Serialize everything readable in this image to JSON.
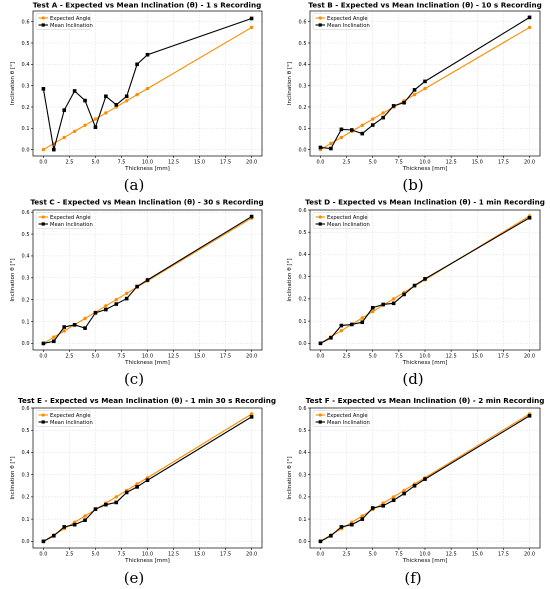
{
  "figure": {
    "panels": [
      {
        "caption": "(a)"
      },
      {
        "caption": "(b)"
      },
      {
        "caption": "(c)"
      },
      {
        "caption": "(d)"
      },
      {
        "caption": "(e)"
      },
      {
        "caption": "(f)"
      }
    ]
  },
  "colors": {
    "expected": "#ff8c00",
    "mean": "#000000",
    "grid": "#d9d9d9"
  },
  "chart_data": [
    {
      "type": "line",
      "title": "Test A - Expected vs Mean Inclination (θ) - 1 s Recording",
      "xlabel": "Thickness [mm]",
      "ylabel": "Inclination θ [°]",
      "xlim": [
        -1,
        21
      ],
      "ylim": [
        -0.03,
        0.65
      ],
      "xticks": [
        0.0,
        2.5,
        5.0,
        7.5,
        10.0,
        12.5,
        15.0,
        17.5,
        20.0
      ],
      "yticks": [
        0.0,
        0.1,
        0.2,
        0.3,
        0.4,
        0.5,
        0.6
      ],
      "grid": true,
      "legend": "top-left",
      "x": [
        0,
        1,
        2,
        3,
        4,
        5,
        6,
        7,
        8,
        9,
        10,
        20
      ],
      "series": [
        {
          "name": "Expected Angle",
          "marker": "circle",
          "values": [
            0.0,
            0.029,
            0.057,
            0.086,
            0.114,
            0.143,
            0.172,
            0.2,
            0.229,
            0.258,
            0.286,
            0.573
          ]
        },
        {
          "name": "Mean Inclination",
          "marker": "square",
          "values": [
            0.285,
            0.0,
            0.185,
            0.275,
            0.23,
            0.105,
            0.25,
            0.21,
            0.25,
            0.4,
            0.445,
            0.615
          ]
        }
      ]
    },
    {
      "type": "line",
      "title": "Test B - Expected vs Mean Inclination (θ) - 10 s Recording",
      "xlabel": "Thickness [mm]",
      "ylabel": "Inclination θ [°]",
      "xlim": [
        -1,
        21
      ],
      "ylim": [
        -0.03,
        0.65
      ],
      "xticks": [
        0.0,
        2.5,
        5.0,
        7.5,
        10.0,
        12.5,
        15.0,
        17.5,
        20.0
      ],
      "yticks": [
        0.0,
        0.1,
        0.2,
        0.3,
        0.4,
        0.5,
        0.6
      ],
      "grid": true,
      "legend": "top-left",
      "x": [
        0,
        1,
        2,
        3,
        4,
        5,
        6,
        7,
        8,
        9,
        10,
        20
      ],
      "series": [
        {
          "name": "Expected Angle",
          "marker": "circle",
          "values": [
            0.0,
            0.029,
            0.057,
            0.086,
            0.114,
            0.143,
            0.172,
            0.2,
            0.229,
            0.258,
            0.286,
            0.573
          ]
        },
        {
          "name": "Mean Inclination",
          "marker": "square",
          "values": [
            0.01,
            0.005,
            0.095,
            0.092,
            0.075,
            0.115,
            0.15,
            0.205,
            0.22,
            0.28,
            0.32,
            0.62
          ]
        }
      ]
    },
    {
      "type": "line",
      "title": "Test C - Expected vs Mean Inclination (θ) - 30 s Recording",
      "xlabel": "Thickness [mm]",
      "ylabel": "Inclination θ [°]",
      "xlim": [
        -1,
        21
      ],
      "ylim": [
        -0.03,
        0.61
      ],
      "xticks": [
        0.0,
        2.5,
        5.0,
        7.5,
        10.0,
        12.5,
        15.0,
        17.5,
        20.0
      ],
      "yticks": [
        0.0,
        0.1,
        0.2,
        0.3,
        0.4,
        0.5,
        0.6
      ],
      "grid": true,
      "legend": "top-left",
      "x": [
        0,
        1,
        2,
        3,
        4,
        5,
        6,
        7,
        8,
        9,
        10,
        20
      ],
      "series": [
        {
          "name": "Expected Angle",
          "marker": "circle",
          "values": [
            0.0,
            0.029,
            0.057,
            0.086,
            0.114,
            0.143,
            0.172,
            0.2,
            0.229,
            0.258,
            0.286,
            0.573
          ]
        },
        {
          "name": "Mean Inclination",
          "marker": "square",
          "values": [
            0.0,
            0.01,
            0.075,
            0.085,
            0.07,
            0.14,
            0.155,
            0.18,
            0.205,
            0.26,
            0.29,
            0.58
          ]
        }
      ]
    },
    {
      "type": "line",
      "title": "Test D - Expected vs Mean Inclination (θ) - 1 min Recording",
      "xlabel": "Thickness [mm]",
      "ylabel": "Inclination θ [°]",
      "xlim": [
        -1,
        21
      ],
      "ylim": [
        -0.03,
        0.6
      ],
      "xticks": [
        0.0,
        2.5,
        5.0,
        7.5,
        10.0,
        12.5,
        15.0,
        17.5,
        20.0
      ],
      "yticks": [
        0.0,
        0.1,
        0.2,
        0.3,
        0.4,
        0.5,
        0.6
      ],
      "grid": true,
      "legend": "top-left",
      "x": [
        0,
        1,
        2,
        3,
        4,
        5,
        6,
        7,
        8,
        9,
        10,
        20
      ],
      "series": [
        {
          "name": "Expected Angle",
          "marker": "circle",
          "values": [
            0.0,
            0.029,
            0.057,
            0.086,
            0.114,
            0.143,
            0.172,
            0.2,
            0.229,
            0.258,
            0.286,
            0.573
          ]
        },
        {
          "name": "Mean Inclination",
          "marker": "square",
          "values": [
            0.0,
            0.025,
            0.08,
            0.085,
            0.095,
            0.16,
            0.175,
            0.18,
            0.22,
            0.26,
            0.29,
            0.565
          ]
        }
      ]
    },
    {
      "type": "line",
      "title": "Test E - Expected vs Mean Inclination (θ) - 1 min 30 s Recording",
      "xlabel": "Thickness [mm]",
      "ylabel": "Inclination θ [°]",
      "xlim": [
        -1,
        21
      ],
      "ylim": [
        -0.03,
        0.6
      ],
      "xticks": [
        0.0,
        2.5,
        5.0,
        7.5,
        10.0,
        12.5,
        15.0,
        17.5,
        20.0
      ],
      "yticks": [
        0.0,
        0.1,
        0.2,
        0.3,
        0.4,
        0.5,
        0.6
      ],
      "grid": true,
      "legend": "top-left",
      "x": [
        0,
        1,
        2,
        3,
        4,
        5,
        6,
        7,
        8,
        9,
        10,
        20
      ],
      "series": [
        {
          "name": "Expected Angle",
          "marker": "circle",
          "values": [
            0.0,
            0.029,
            0.057,
            0.086,
            0.114,
            0.143,
            0.172,
            0.2,
            0.229,
            0.258,
            0.286,
            0.573
          ]
        },
        {
          "name": "Mean Inclination",
          "marker": "square",
          "values": [
            0.0,
            0.025,
            0.065,
            0.075,
            0.095,
            0.145,
            0.165,
            0.175,
            0.22,
            0.245,
            0.275,
            0.56
          ]
        }
      ]
    },
    {
      "type": "line",
      "title": "Test F - Expected vs Mean Inclination (θ) - 2 min Recording",
      "xlabel": "Thickness [mm]",
      "ylabel": "Inclination θ [°]",
      "xlim": [
        -1,
        21
      ],
      "ylim": [
        -0.03,
        0.6
      ],
      "xticks": [
        0.0,
        2.5,
        5.0,
        7.5,
        10.0,
        12.5,
        15.0,
        17.5,
        20.0
      ],
      "yticks": [
        0.0,
        0.1,
        0.2,
        0.3,
        0.4,
        0.5,
        0.6
      ],
      "grid": true,
      "legend": "top-left",
      "x": [
        0,
        1,
        2,
        3,
        4,
        5,
        6,
        7,
        8,
        9,
        10,
        20
      ],
      "series": [
        {
          "name": "Expected Angle",
          "marker": "circle",
          "values": [
            0.0,
            0.029,
            0.057,
            0.086,
            0.114,
            0.143,
            0.172,
            0.2,
            0.229,
            0.258,
            0.286,
            0.573
          ]
        },
        {
          "name": "Mean Inclination",
          "marker": "square",
          "values": [
            0.0,
            0.025,
            0.065,
            0.075,
            0.1,
            0.15,
            0.16,
            0.185,
            0.215,
            0.25,
            0.28,
            0.565
          ]
        }
      ]
    }
  ]
}
